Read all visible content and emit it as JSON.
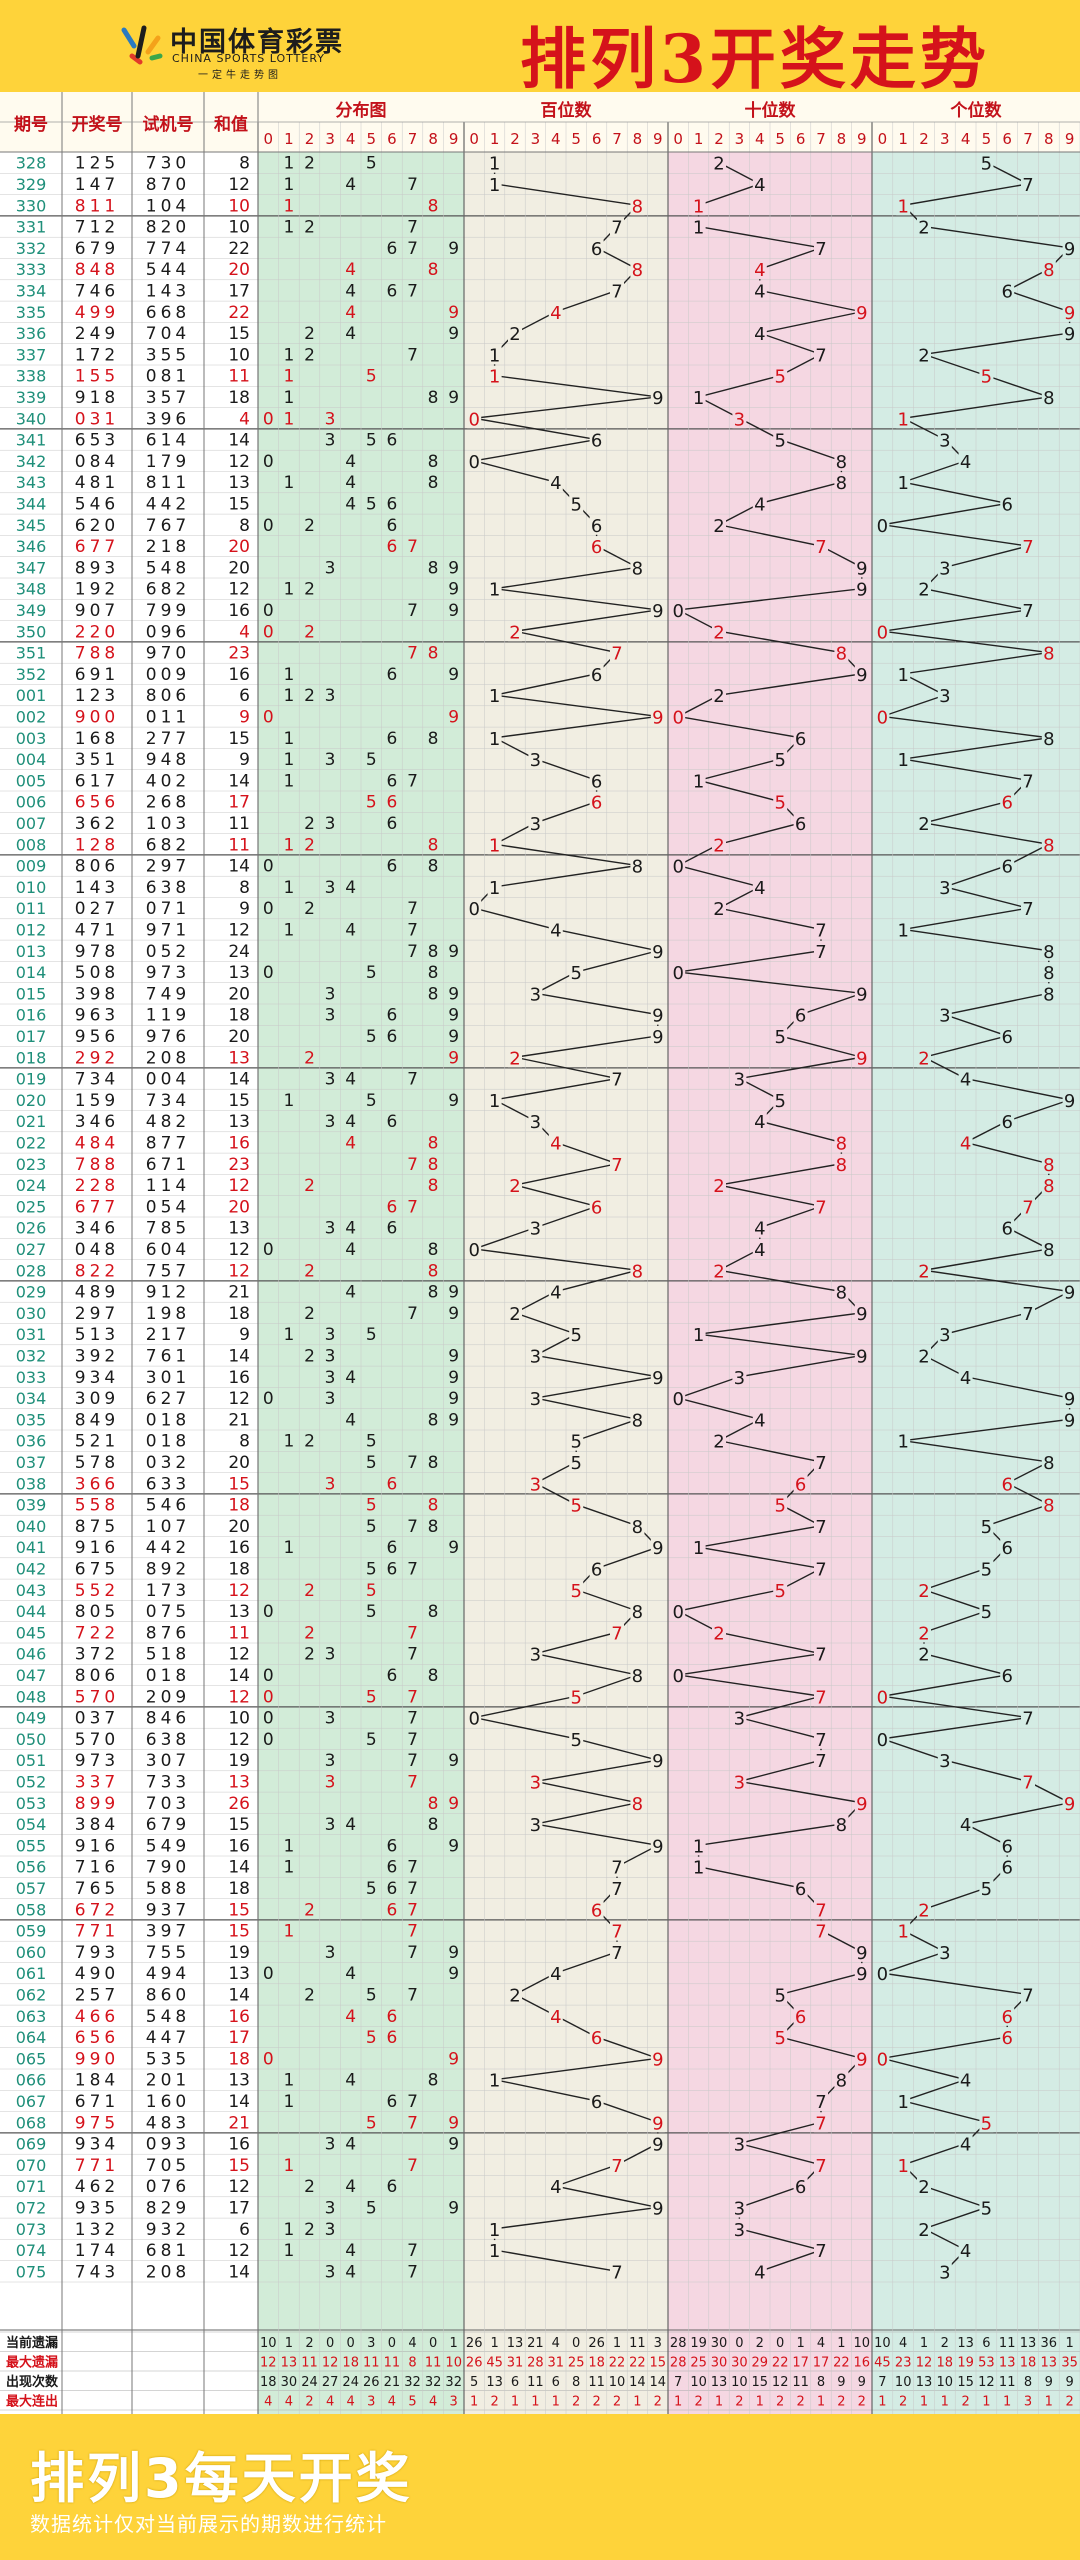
{
  "header": {
    "logo_cn": "中国体育彩票",
    "logo_en": "CHINA SPORTS LOTTERY",
    "logo_slogan": "一定牛走势图",
    "title": "排列3开奖走势"
  },
  "footer": {
    "title": "排列3每天开奖",
    "note": "数据统计仅对当前展示的期数进行统计"
  },
  "chart_data": {
    "type": "table",
    "columns": {
      "issue": "期号",
      "draw": "开奖号",
      "test": "试机号",
      "sum": "和值",
      "dist": "分布图",
      "hundreds": "百位数",
      "tens": "十位数",
      "units": "个位数"
    },
    "digits": [
      "0",
      "1",
      "2",
      "3",
      "4",
      "5",
      "6",
      "7",
      "8",
      "9"
    ],
    "rows": [
      [
        "328",
        "125",
        "730",
        "8"
      ],
      [
        "329",
        "147",
        "870",
        "12"
      ],
      [
        "330",
        "811",
        "104",
        "10"
      ],
      [
        "331",
        "712",
        "820",
        "10"
      ],
      [
        "332",
        "679",
        "774",
        "22"
      ],
      [
        "333",
        "848",
        "544",
        "20"
      ],
      [
        "334",
        "746",
        "143",
        "17"
      ],
      [
        "335",
        "499",
        "668",
        "22"
      ],
      [
        "336",
        "249",
        "704",
        "15"
      ],
      [
        "337",
        "172",
        "355",
        "10"
      ],
      [
        "338",
        "155",
        "081",
        "11"
      ],
      [
        "339",
        "918",
        "357",
        "18"
      ],
      [
        "340",
        "031",
        "396",
        "4"
      ],
      [
        "341",
        "653",
        "614",
        "14"
      ],
      [
        "342",
        "084",
        "179",
        "12"
      ],
      [
        "343",
        "481",
        "811",
        "13"
      ],
      [
        "344",
        "546",
        "442",
        "15"
      ],
      [
        "345",
        "620",
        "767",
        "8"
      ],
      [
        "346",
        "677",
        "218",
        "20"
      ],
      [
        "347",
        "893",
        "548",
        "20"
      ],
      [
        "348",
        "192",
        "682",
        "12"
      ],
      [
        "349",
        "907",
        "799",
        "16"
      ],
      [
        "350",
        "220",
        "096",
        "4"
      ],
      [
        "351",
        "788",
        "970",
        "23"
      ],
      [
        "352",
        "691",
        "009",
        "16"
      ],
      [
        "001",
        "123",
        "806",
        "6"
      ],
      [
        "002",
        "900",
        "011",
        "9"
      ],
      [
        "003",
        "168",
        "277",
        "15"
      ],
      [
        "004",
        "351",
        "948",
        "9"
      ],
      [
        "005",
        "617",
        "402",
        "14"
      ],
      [
        "006",
        "656",
        "268",
        "17"
      ],
      [
        "007",
        "362",
        "103",
        "11"
      ],
      [
        "008",
        "128",
        "682",
        "11"
      ],
      [
        "009",
        "806",
        "297",
        "14"
      ],
      [
        "010",
        "143",
        "638",
        "8"
      ],
      [
        "011",
        "027",
        "071",
        "9"
      ],
      [
        "012",
        "471",
        "971",
        "12"
      ],
      [
        "013",
        "978",
        "052",
        "24"
      ],
      [
        "014",
        "508",
        "973",
        "13"
      ],
      [
        "015",
        "398",
        "749",
        "20"
      ],
      [
        "016",
        "963",
        "119",
        "18"
      ],
      [
        "017",
        "956",
        "976",
        "20"
      ],
      [
        "018",
        "292",
        "208",
        "13"
      ],
      [
        "019",
        "734",
        "004",
        "14"
      ],
      [
        "020",
        "159",
        "734",
        "15"
      ],
      [
        "021",
        "346",
        "482",
        "13"
      ],
      [
        "022",
        "484",
        "877",
        "16"
      ],
      [
        "023",
        "788",
        "671",
        "23"
      ],
      [
        "024",
        "228",
        "114",
        "12"
      ],
      [
        "025",
        "677",
        "054",
        "20"
      ],
      [
        "026",
        "346",
        "785",
        "13"
      ],
      [
        "027",
        "048",
        "604",
        "12"
      ],
      [
        "028",
        "822",
        "757",
        "12"
      ],
      [
        "029",
        "489",
        "912",
        "21"
      ],
      [
        "030",
        "297",
        "198",
        "18"
      ],
      [
        "031",
        "513",
        "217",
        "9"
      ],
      [
        "032",
        "392",
        "761",
        "14"
      ],
      [
        "033",
        "934",
        "301",
        "16"
      ],
      [
        "034",
        "309",
        "627",
        "12"
      ],
      [
        "035",
        "849",
        "018",
        "21"
      ],
      [
        "036",
        "521",
        "018",
        "8"
      ],
      [
        "037",
        "578",
        "032",
        "20"
      ],
      [
        "038",
        "366",
        "633",
        "15"
      ],
      [
        "039",
        "558",
        "546",
        "18"
      ],
      [
        "040",
        "875",
        "107",
        "20"
      ],
      [
        "041",
        "916",
        "442",
        "16"
      ],
      [
        "042",
        "675",
        "892",
        "18"
      ],
      [
        "043",
        "552",
        "173",
        "12"
      ],
      [
        "044",
        "805",
        "075",
        "13"
      ],
      [
        "045",
        "722",
        "876",
        "11"
      ],
      [
        "046",
        "372",
        "518",
        "12"
      ],
      [
        "047",
        "806",
        "018",
        "14"
      ],
      [
        "048",
        "570",
        "209",
        "12"
      ],
      [
        "049",
        "037",
        "846",
        "10"
      ],
      [
        "050",
        "570",
        "638",
        "12"
      ],
      [
        "051",
        "973",
        "307",
        "19"
      ],
      [
        "052",
        "337",
        "733",
        "13"
      ],
      [
        "053",
        "899",
        "703",
        "26"
      ],
      [
        "054",
        "384",
        "679",
        "15"
      ],
      [
        "055",
        "916",
        "549",
        "16"
      ],
      [
        "056",
        "716",
        "790",
        "14"
      ],
      [
        "057",
        "765",
        "588",
        "18"
      ],
      [
        "058",
        "672",
        "937",
        "15"
      ],
      [
        "059",
        "771",
        "397",
        "15"
      ],
      [
        "060",
        "793",
        "755",
        "19"
      ],
      [
        "061",
        "490",
        "494",
        "13"
      ],
      [
        "062",
        "257",
        "860",
        "14"
      ],
      [
        "063",
        "466",
        "548",
        "16"
      ],
      [
        "064",
        "656",
        "447",
        "17"
      ],
      [
        "065",
        "990",
        "535",
        "18"
      ],
      [
        "066",
        "184",
        "201",
        "13"
      ],
      [
        "067",
        "671",
        "160",
        "14"
      ],
      [
        "068",
        "975",
        "483",
        "21"
      ],
      [
        "069",
        "934",
        "093",
        "16"
      ],
      [
        "070",
        "771",
        "705",
        "15"
      ],
      [
        "071",
        "462",
        "076",
        "12"
      ],
      [
        "072",
        "935",
        "829",
        "17"
      ],
      [
        "073",
        "132",
        "932",
        "6"
      ],
      [
        "074",
        "174",
        "681",
        "12"
      ],
      [
        "075",
        "743",
        "208",
        "14"
      ]
    ],
    "stats": [
      {
        "label": "当前遗漏",
        "color": "#1a1a1a",
        "dist": [
          "10",
          "1",
          "2",
          "0",
          "0",
          "3",
          "0",
          "4",
          "0",
          "1"
        ],
        "hundreds": [
          "26",
          "1",
          "13",
          "21",
          "4",
          "0",
          "26",
          "1",
          "11",
          "3"
        ],
        "tens": [
          "28",
          "19",
          "30",
          "0",
          "2",
          "0",
          "1",
          "4",
          "1",
          "10"
        ],
        "units": [
          "10",
          "4",
          "1",
          "2",
          "13",
          "6",
          "11",
          "13",
          "36",
          "1"
        ]
      },
      {
        "label": "最大遗漏",
        "color": "#d5121b",
        "dist": [
          "12",
          "13",
          "11",
          "12",
          "18",
          "11",
          "11",
          "8",
          "11",
          "10"
        ],
        "hundreds": [
          "26",
          "45",
          "31",
          "28",
          "31",
          "25",
          "18",
          "22",
          "22",
          "15"
        ],
        "tens": [
          "28",
          "25",
          "30",
          "30",
          "29",
          "22",
          "17",
          "17",
          "22",
          "16"
        ],
        "units": [
          "45",
          "23",
          "12",
          "18",
          "19",
          "53",
          "13",
          "18",
          "13",
          "35"
        ]
      },
      {
        "label": "出现次数",
        "color": "#1a1a1a",
        "dist": [
          "18",
          "30",
          "24",
          "27",
          "24",
          "26",
          "21",
          "32",
          "32",
          "32"
        ],
        "hundreds": [
          "5",
          "13",
          "6",
          "11",
          "6",
          "8",
          "11",
          "10",
          "14",
          "14"
        ],
        "tens": [
          "7",
          "10",
          "13",
          "10",
          "15",
          "12",
          "11",
          "8",
          "9",
          "9"
        ],
        "units": [
          "7",
          "10",
          "13",
          "10",
          "15",
          "12",
          "11",
          "8",
          "9",
          "9"
        ]
      },
      {
        "label": "最大连出",
        "color": "#d5121b",
        "dist": [
          "4",
          "4",
          "2",
          "4",
          "4",
          "3",
          "4",
          "5",
          "4",
          "3"
        ],
        "hundreds": [
          "1",
          "2",
          "1",
          "1",
          "1",
          "2",
          "2",
          "2",
          "1",
          "2"
        ],
        "tens": [
          "1",
          "2",
          "1",
          "2",
          "1",
          "2",
          "2",
          "1",
          "2",
          "2"
        ],
        "units": [
          "1",
          "2",
          "1",
          "1",
          "2",
          "1",
          "1",
          "3",
          "1",
          "2"
        ]
      }
    ]
  },
  "style": {
    "red": "#d5121b",
    "teal": "#1f8f7a",
    "green_bg": "#d2ecd8",
    "beige_bg": "#f1eee2",
    "pink_bg": "#f5d7e2",
    "mint_bg": "#d4ece4",
    "header_red": "#c3111a"
  }
}
